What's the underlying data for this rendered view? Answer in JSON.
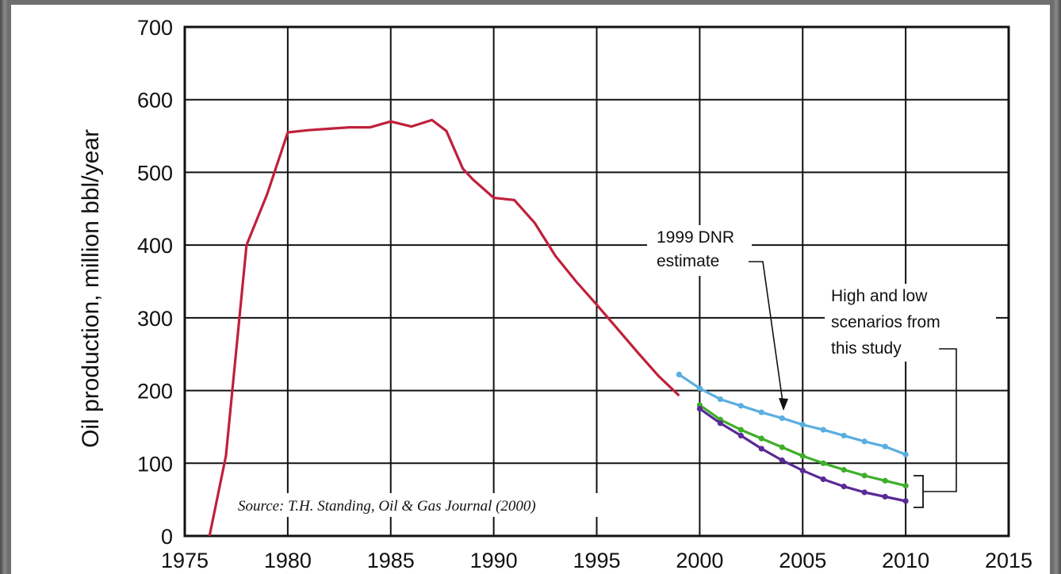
{
  "chart_data": {
    "type": "line",
    "title": "",
    "xlabel": "",
    "ylabel": "Oil production, million bbl/year",
    "xlim": [
      1975,
      2015
    ],
    "ylim": [
      0,
      700
    ],
    "x_ticks": [
      "1975",
      "1980",
      "1985",
      "1990",
      "1995",
      "2000",
      "2005",
      "2010",
      "2015"
    ],
    "y_ticks": [
      "0",
      "100",
      "200",
      "300",
      "400",
      "500",
      "600",
      "700"
    ],
    "grid": true,
    "series": [
      {
        "color": "#c0203c",
        "markers": false,
        "points": [
          [
            1976.2,
            0
          ],
          [
            1977,
            110
          ],
          [
            1978,
            400
          ],
          [
            1979,
            470
          ],
          [
            1980,
            555
          ],
          [
            1981,
            558
          ],
          [
            1982,
            560
          ],
          [
            1983,
            562
          ],
          [
            1984,
            562
          ],
          [
            1985,
            570
          ],
          [
            1986,
            563
          ],
          [
            1987,
            572
          ],
          [
            1987.7,
            557
          ],
          [
            1988.5,
            505
          ],
          [
            1989,
            490
          ],
          [
            1990,
            465
          ],
          [
            1991,
            462
          ],
          [
            1992,
            430
          ],
          [
            1993,
            385
          ],
          [
            1994,
            350
          ],
          [
            1995,
            318
          ],
          [
            1996,
            285
          ],
          [
            1997,
            252
          ],
          [
            1998,
            220
          ],
          [
            1999,
            193
          ]
        ]
      },
      {
        "color": "#5aaee0",
        "markers": true,
        "points": [
          [
            1999,
            222
          ],
          [
            2000,
            203
          ],
          [
            2001,
            188
          ],
          [
            2002,
            179
          ],
          [
            2003,
            170
          ],
          [
            2004,
            162
          ],
          [
            2005,
            153
          ],
          [
            2006,
            146
          ],
          [
            2007,
            138
          ],
          [
            2008,
            130
          ],
          [
            2009,
            123
          ],
          [
            2010,
            112
          ]
        ]
      },
      {
        "color": "#3fae2a",
        "markers": true,
        "points": [
          [
            2000,
            180
          ],
          [
            2001,
            160
          ],
          [
            2002,
            146
          ],
          [
            2003,
            134
          ],
          [
            2004,
            122
          ],
          [
            2005,
            110
          ],
          [
            2006,
            100
          ],
          [
            2007,
            91
          ],
          [
            2008,
            83
          ],
          [
            2009,
            76
          ],
          [
            2010,
            69
          ]
        ]
      },
      {
        "color": "#5a2a96",
        "markers": true,
        "points": [
          [
            2000,
            175
          ],
          [
            2001,
            155
          ],
          [
            2002,
            138
          ],
          [
            2003,
            120
          ],
          [
            2004,
            104
          ],
          [
            2005,
            90
          ],
          [
            2006,
            78
          ],
          [
            2007,
            68
          ],
          [
            2008,
            60
          ],
          [
            2009,
            54
          ],
          [
            2010,
            48
          ]
        ]
      }
    ],
    "annotations": {
      "dnr_line1": "1999 DNR",
      "dnr_line2": "estimate",
      "study_line1": "High and low",
      "study_line2": "scenarios from",
      "study_line3": "this study",
      "source": "Source:  T.H. Standing, Oil & Gas Journal (2000)"
    }
  }
}
